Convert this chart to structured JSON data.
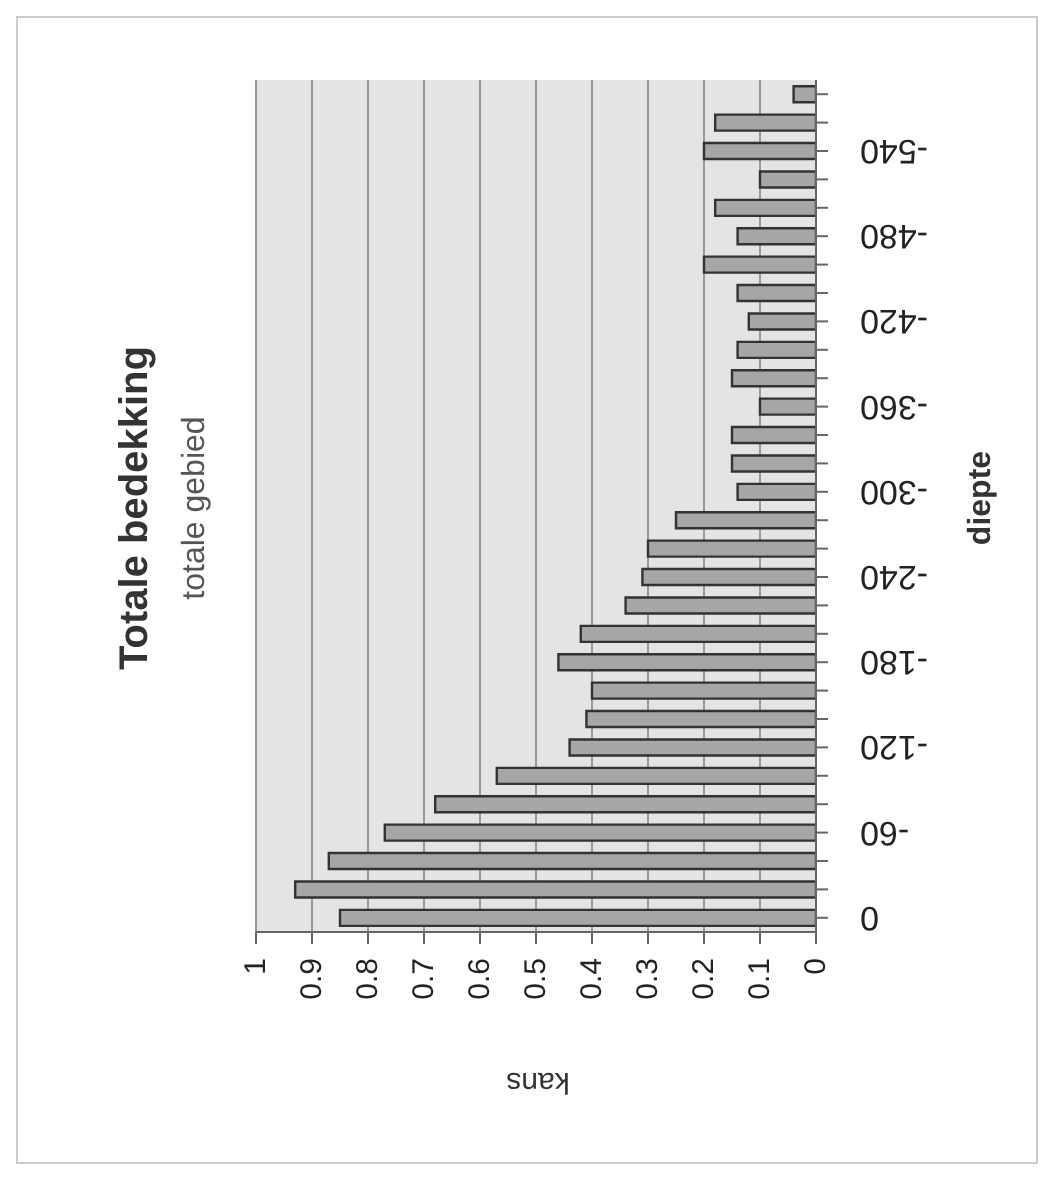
{
  "chart_data": {
    "type": "bar",
    "orientation": "horizontal",
    "title": "Totale bedekking",
    "subtitle": "totale gebied",
    "xlabel": "kans",
    "ylabel": "diepte",
    "categories": [
      null,
      null,
      "-540",
      null,
      null,
      "-480",
      null,
      null,
      "-420",
      null,
      null,
      "-360",
      null,
      null,
      "-300",
      null,
      null,
      "-240",
      null,
      null,
      "-180",
      null,
      null,
      "-120",
      null,
      null,
      "-60",
      null,
      null,
      "0"
    ],
    "values": [
      0.04,
      0.18,
      0.2,
      0.1,
      0.18,
      0.14,
      0.2,
      0.14,
      0.12,
      0.14,
      0.15,
      0.1,
      0.15,
      0.15,
      0.14,
      0.25,
      0.3,
      0.31,
      0.34,
      0.42,
      0.46,
      0.4,
      0.41,
      0.44,
      0.57,
      0.68,
      0.77,
      0.87,
      0.93,
      0.85
    ],
    "color": "#a6a6a6",
    "xlim": [
      1,
      0
    ],
    "xticks": [
      0,
      0.1,
      0.2,
      0.3,
      0.4,
      0.5,
      0.6,
      0.7,
      0.8,
      0.9,
      1
    ],
    "grid": "x",
    "legend": false
  }
}
